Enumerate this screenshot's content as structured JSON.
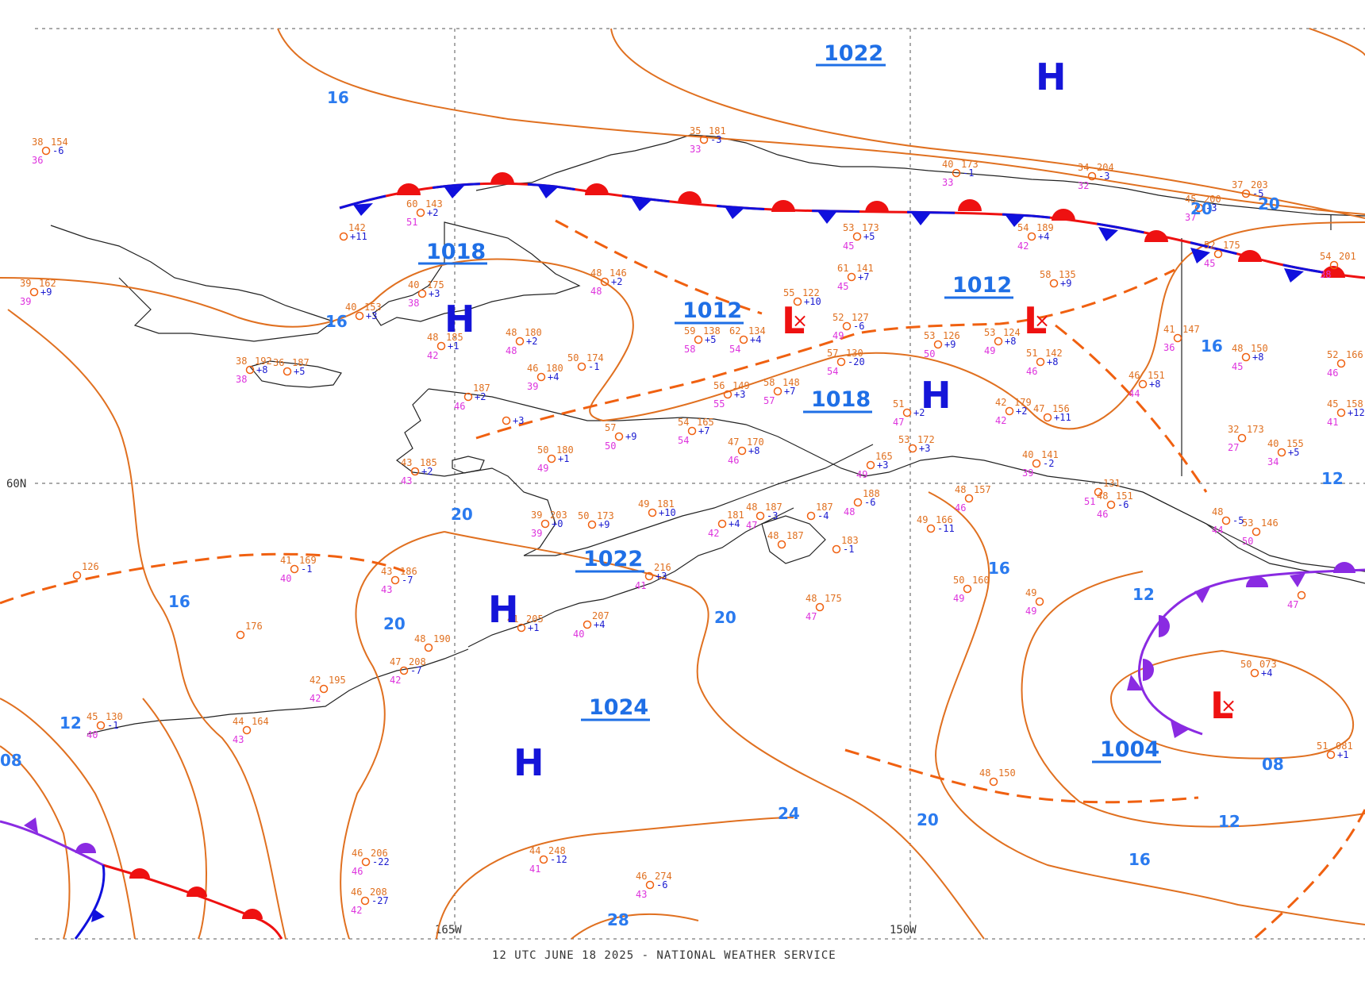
{
  "chart": {
    "footer": "12 UTC JUNE 18 2025 - NATIONAL WEATHER SERVICE",
    "lat_label": "60N",
    "lon_labels": [
      "165W",
      "150W"
    ]
  },
  "pressure_labels": [
    "1022",
    "1018",
    "1012",
    "1012",
    "1018",
    "1022",
    "1024",
    "1004"
  ],
  "highs": [
    "H",
    "H",
    "H",
    "H",
    "H"
  ],
  "lows": [
    "L",
    "L",
    "L"
  ],
  "isobar_labels": [
    "16",
    "16",
    "16",
    "20",
    "20",
    "20",
    "20",
    "20",
    "24",
    "28",
    "16",
    "16",
    "12",
    "12",
    "12",
    "08",
    "08",
    "20",
    "16",
    "12"
  ],
  "stations": [
    {
      "t": "38",
      "p": "154",
      "v": "-6",
      "d": "36"
    },
    {
      "t": "39",
      "p": "162",
      "v": "+9",
      "d": "39"
    },
    {
      "t": "60",
      "p": "143",
      "v": "+2",
      "d": "51"
    },
    {
      "t": "",
      "p": "142",
      "v": "+11",
      "d": ""
    },
    {
      "t": "40",
      "p": "175",
      "v": "+3",
      "d": "38"
    },
    {
      "t": "40",
      "p": "153",
      "v": "+3",
      "d": ""
    },
    {
      "t": "48",
      "p": "146",
      "v": "+2",
      "d": "48"
    },
    {
      "t": "38",
      "p": "192",
      "v": "+8",
      "d": "38"
    },
    {
      "t": "36",
      "p": "187",
      "v": "+5",
      "d": ""
    },
    {
      "t": "48",
      "p": "185",
      "v": "+1",
      "d": "42"
    },
    {
      "t": "48",
      "p": "180",
      "v": "+2",
      "d": "48"
    },
    {
      "t": "50",
      "p": "174",
      "v": "-1",
      "d": ""
    },
    {
      "t": "46",
      "p": "180",
      "v": "+4",
      "d": "39"
    },
    {
      "t": "",
      "p": "187",
      "v": "+2",
      "d": "46"
    },
    {
      "t": "",
      "p": "",
      "v": "+3",
      "d": ""
    },
    {
      "t": "43",
      "p": "185",
      "v": "+2",
      "d": "43"
    },
    {
      "t": "50",
      "p": "180",
      "v": "+1",
      "d": "49"
    },
    {
      "t": "57",
      "p": "",
      "v": "+9",
      "d": "50"
    },
    {
      "t": "59",
      "p": "138",
      "v": "+5",
      "d": "58"
    },
    {
      "t": "62",
      "p": "134",
      "v": "+4",
      "d": "54"
    },
    {
      "t": "55",
      "p": "122",
      "v": "+10",
      "d": ""
    },
    {
      "t": "56",
      "p": "149",
      "v": "+3",
      "d": "55"
    },
    {
      "t": "58",
      "p": "148",
      "v": "+7",
      "d": "57"
    },
    {
      "t": "54",
      "p": "165",
      "v": "+7",
      "d": "54"
    },
    {
      "t": "47",
      "p": "170",
      "v": "+8",
      "d": "46"
    },
    {
      "t": "57",
      "p": "130",
      "v": "-20",
      "d": "54"
    },
    {
      "t": "52",
      "p": "127",
      "v": "-6",
      "d": "49"
    },
    {
      "t": "53",
      "p": "173",
      "v": "+5",
      "d": "45"
    },
    {
      "t": "61",
      "p": "141",
      "v": "+7",
      "d": "45"
    },
    {
      "t": "53",
      "p": "126",
      "v": "+9",
      "d": "50"
    },
    {
      "t": "53",
      "p": "124",
      "v": "+8",
      "d": "49"
    },
    {
      "t": "58",
      "p": "135",
      "v": "+9",
      "d": ""
    },
    {
      "t": "51",
      "p": "142",
      "v": "+8",
      "d": "46"
    },
    {
      "t": "54",
      "p": "189",
      "v": "+4",
      "d": "42"
    },
    {
      "t": "40",
      "p": "173",
      "v": "-1",
      "d": "33"
    },
    {
      "t": "34",
      "p": "204",
      "v": "-3",
      "d": "32"
    },
    {
      "t": "37",
      "p": "203",
      "v": "-5",
      "d": ""
    },
    {
      "t": "45",
      "p": "200",
      "v": "-3",
      "d": "37"
    },
    {
      "t": "52",
      "p": "175",
      "v": "",
      "d": "45"
    },
    {
      "t": "54",
      "p": "201",
      "v": "",
      "d": "38"
    },
    {
      "t": "35",
      "p": "181",
      "v": "-3",
      "d": "33"
    },
    {
      "t": "41",
      "p": "147",
      "v": "",
      "d": "36"
    },
    {
      "t": "48",
      "p": "150",
      "v": "+8",
      "d": "45"
    },
    {
      "t": "52",
      "p": "166",
      "v": "",
      "d": "46"
    },
    {
      "t": "46",
      "p": "151",
      "v": "+8",
      "d": "44"
    },
    {
      "t": "45",
      "p": "158",
      "v": "+12",
      "d": "41"
    },
    {
      "t": "32",
      "p": "173",
      "v": "",
      "d": "27"
    },
    {
      "t": "40",
      "p": "155",
      "v": "+5",
      "d": "34"
    },
    {
      "t": "42",
      "p": "179",
      "v": "+2",
      "d": "42"
    },
    {
      "t": "47",
      "p": "156",
      "v": "+11",
      "d": ""
    },
    {
      "t": "51",
      "p": "",
      "v": "+2",
      "d": "47"
    },
    {
      "t": "53",
      "p": "172",
      "v": "+3",
      "d": ""
    },
    {
      "t": "",
      "p": "165",
      "v": "+3",
      "d": "49"
    },
    {
      "t": "40",
      "p": "141",
      "v": "-2",
      "d": "39"
    },
    {
      "t": "48",
      "p": "157",
      "v": "",
      "d": "46"
    },
    {
      "t": "48",
      "p": "151",
      "v": "-6",
      "d": "46"
    },
    {
      "t": "",
      "p": "131",
      "v": "",
      "d": "51"
    },
    {
      "t": "48",
      "p": "187",
      "v": "-3",
      "d": "47"
    },
    {
      "t": "",
      "p": "187",
      "v": "-4",
      "d": ""
    },
    {
      "t": "",
      "p": "188",
      "v": "-6",
      "d": "48"
    },
    {
      "t": "",
      "p": "183",
      "v": "-1",
      "d": ""
    },
    {
      "t": "48",
      "p": "187",
      "v": "",
      "d": ""
    },
    {
      "t": "49",
      "p": "166",
      "v": "-11",
      "d": ""
    },
    {
      "t": "50",
      "p": "160",
      "v": "",
      "d": "49"
    },
    {
      "t": "48",
      "p": "175",
      "v": "",
      "d": "47"
    },
    {
      "t": "50",
      "p": "173",
      "v": "+9",
      "d": ""
    },
    {
      "t": "49",
      "p": "181",
      "v": "+10",
      "d": ""
    },
    {
      "t": "39",
      "p": "203",
      "v": "+0",
      "d": "39"
    },
    {
      "t": "",
      "p": "181",
      "v": "+4",
      "d": "42"
    },
    {
      "t": "",
      "p": "216",
      "v": "+3",
      "d": "41"
    },
    {
      "t": "41",
      "p": "205",
      "v": "+1",
      "d": ""
    },
    {
      "t": "",
      "p": "207",
      "v": "+4",
      "d": "40"
    },
    {
      "t": "41",
      "p": "169",
      "v": "-1",
      "d": "40"
    },
    {
      "t": "43",
      "p": "186",
      "v": "-7",
      "d": "43"
    },
    {
      "t": "",
      "p": "126",
      "v": "",
      "d": ""
    },
    {
      "t": "",
      "p": "176",
      "v": "",
      "d": ""
    },
    {
      "t": "47",
      "p": "208",
      "v": "-7",
      "d": "42"
    },
    {
      "t": "48",
      "p": "190",
      "v": "",
      "d": ""
    },
    {
      "t": "42",
      "p": "195",
      "v": "",
      "d": "42"
    },
    {
      "t": "45",
      "p": "130",
      "v": "-1",
      "d": "40"
    },
    {
      "t": "44",
      "p": "164",
      "v": "",
      "d": "43"
    },
    {
      "t": "46",
      "p": "206",
      "v": "-22",
      "d": "46"
    },
    {
      "t": "46",
      "p": "208",
      "v": "-27",
      "d": "42"
    },
    {
      "t": "44",
      "p": "248",
      "v": "-12",
      "d": "41"
    },
    {
      "t": "46",
      "p": "274",
      "v": "-6",
      "d": "43"
    },
    {
      "t": "48",
      "p": "150",
      "v": "",
      "d": ""
    },
    {
      "t": "49",
      "p": "",
      "v": "",
      "d": "49"
    },
    {
      "t": "50",
      "p": "073",
      "v": "+4",
      "d": ""
    },
    {
      "t": "51",
      "p": "081",
      "v": "+1",
      "d": ""
    },
    {
      "t": "53",
      "p": "146",
      "v": "",
      "d": "50"
    },
    {
      "t": "48",
      "p": "",
      "v": "-5",
      "d": "44"
    },
    {
      "t": "",
      "p": "",
      "v": "",
      "d": "47"
    }
  ],
  "colors": {
    "isobar": "#e07020",
    "high": "#1515d9",
    "low": "#ee1111",
    "warm_front": "#ee1111",
    "cold_front": "#1010dd",
    "occluded_front": "#8a2be2",
    "trough": "#f06010",
    "label": "#2b7bef"
  }
}
